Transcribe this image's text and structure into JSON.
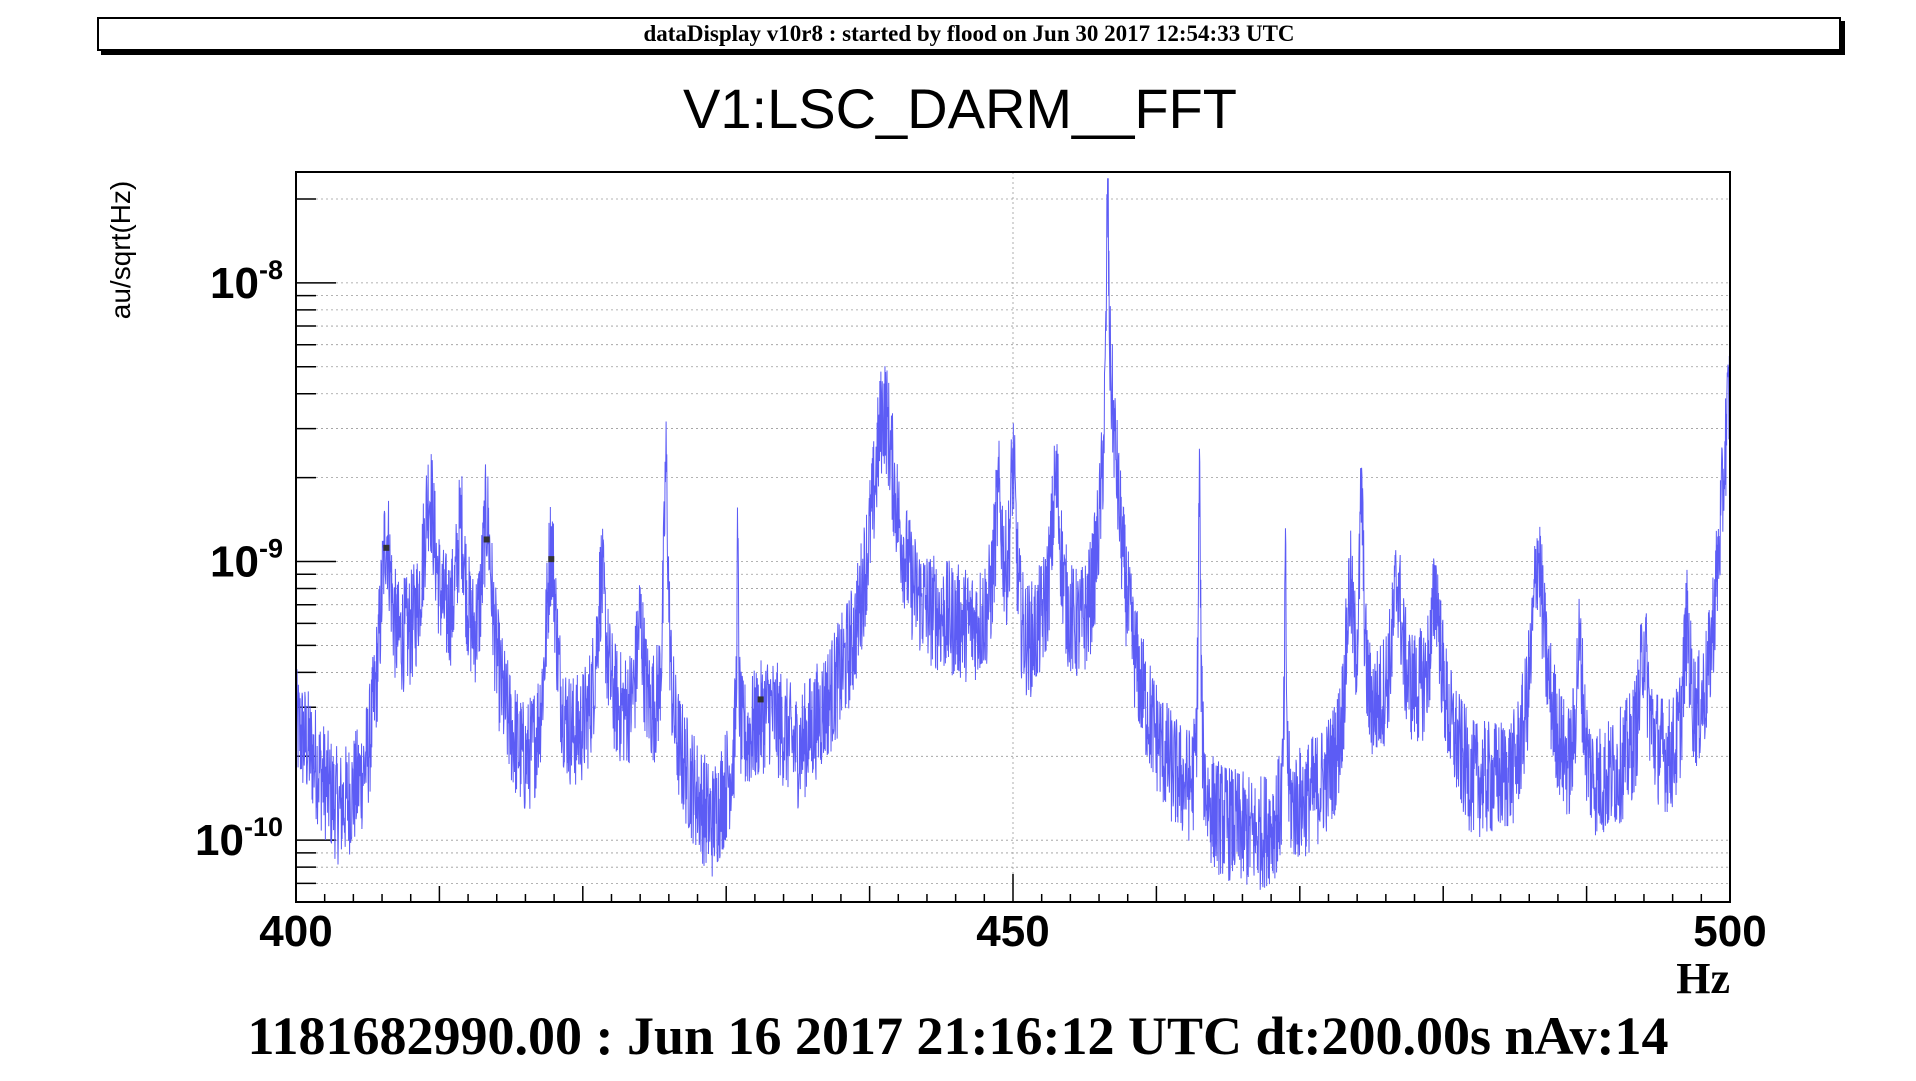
{
  "header": {
    "banner": "dataDisplay v10r8 : started by flood on Jun 30 2017 12:54:33 UTC"
  },
  "footer": {
    "timestamp": "1181682990.00 : Jun 16 2017 21:16:12 UTC dt:200.00s nAv:14"
  },
  "chart_data": {
    "type": "line",
    "title": "V1:LSC_DARM__FFT",
    "xlabel": "Hz",
    "ylabel": "au/sqrt(Hz)",
    "xlim": [
      400,
      500
    ],
    "ylim": [
      6e-11,
      2.5e-08
    ],
    "yscale": "log",
    "grid": true,
    "line_color": "#5c5cf5",
    "x_ticks": [
      {
        "value": 400,
        "label": "400"
      },
      {
        "value": 450,
        "label": "450"
      },
      {
        "value": 500,
        "label": "500"
      }
    ],
    "y_ticks": [
      {
        "value": 1e-10,
        "base": "10",
        "exp": "-10"
      },
      {
        "value": 1e-09,
        "base": "10",
        "exp": "-9"
      },
      {
        "value": 1e-08,
        "base": "10",
        "exp": "-8"
      }
    ],
    "background_floor": [
      [
        400,
        2.5e-10
      ],
      [
        401,
        2e-10
      ],
      [
        403,
        1.1e-10
      ],
      [
        405,
        1.2e-10
      ],
      [
        407.5,
        4e-10
      ],
      [
        410.5,
        4.5e-10
      ],
      [
        413.5,
        3e-10
      ],
      [
        416,
        1.4e-10
      ],
      [
        418,
        1.6e-10
      ],
      [
        420,
        2e-10
      ],
      [
        422,
        2.5e-10
      ],
      [
        425,
        2.3e-10
      ],
      [
        427,
        1.6e-10
      ],
      [
        429,
        1e-10
      ],
      [
        431,
        2e-10
      ],
      [
        433,
        2.8e-10
      ],
      [
        435,
        1.8e-10
      ],
      [
        437,
        2.5e-10
      ],
      [
        439,
        3.5e-10
      ],
      [
        441,
        1e-09
      ],
      [
        443,
        6e-10
      ],
      [
        446,
        5.5e-10
      ],
      [
        448,
        5e-10
      ],
      [
        450,
        3e-10
      ],
      [
        452,
        4.5e-10
      ],
      [
        454,
        4e-10
      ],
      [
        456,
        3e-10
      ],
      [
        459,
        1.8e-10
      ],
      [
        461,
        1.3e-10
      ],
      [
        464,
        1e-10
      ],
      [
        467,
        9e-11
      ],
      [
        470,
        1.2e-10
      ],
      [
        473,
        1.6e-10
      ],
      [
        476,
        2.8e-10
      ],
      [
        479,
        3e-10
      ],
      [
        482,
        1.5e-10
      ],
      [
        485,
        1.5e-10
      ],
      [
        487,
        3e-10
      ],
      [
        489,
        1.2e-10
      ],
      [
        491,
        1.4e-10
      ],
      [
        494,
        2e-10
      ],
      [
        497,
        1.3e-10
      ],
      [
        498.5,
        2.2e-10
      ],
      [
        500,
        1.5e-09
      ]
    ],
    "peaks": [
      {
        "f": 406.3,
        "amp": 1e-09,
        "width": 0.35
      },
      {
        "f": 409.3,
        "amp": 1.3e-09,
        "width": 0.4
      },
      {
        "f": 411.5,
        "amp": 9e-10,
        "width": 0.3
      },
      {
        "f": 413.3,
        "amp": 1.1e-09,
        "width": 0.3
      },
      {
        "f": 417.8,
        "amp": 9.5e-10,
        "width": 0.3
      },
      {
        "f": 421.3,
        "amp": 6e-10,
        "width": 0.3
      },
      {
        "f": 424.0,
        "amp": 3.5e-10,
        "width": 0.25
      },
      {
        "f": 425.8,
        "amp": 2e-09,
        "width": 0.12
      },
      {
        "f": 430.8,
        "amp": 9e-10,
        "width": 0.05
      },
      {
        "f": 441.0,
        "amp": 2.5e-09,
        "width": 0.6
      },
      {
        "f": 449.0,
        "amp": 1.2e-09,
        "width": 0.3
      },
      {
        "f": 450.0,
        "amp": 1.8e-09,
        "width": 0.2
      },
      {
        "f": 453.0,
        "amp": 1.4e-09,
        "width": 0.3
      },
      {
        "f": 456.6,
        "amp": 2e-08,
        "width": 0.06
      },
      {
        "f": 456.8,
        "amp": 3e-09,
        "width": 0.5
      },
      {
        "f": 463.0,
        "amp": 2e-09,
        "width": 0.05
      },
      {
        "f": 469.0,
        "amp": 8e-10,
        "width": 0.05
      },
      {
        "f": 473.5,
        "amp": 6e-10,
        "width": 0.25
      },
      {
        "f": 474.3,
        "amp": 1.5e-09,
        "width": 0.12
      },
      {
        "f": 476.8,
        "amp": 5.5e-10,
        "width": 0.3
      },
      {
        "f": 479.5,
        "amp": 5e-10,
        "width": 0.3
      },
      {
        "f": 486.6,
        "amp": 8e-10,
        "width": 0.3
      },
      {
        "f": 489.5,
        "amp": 3.5e-10,
        "width": 0.25
      },
      {
        "f": 494.0,
        "amp": 3e-10,
        "width": 0.25
      },
      {
        "f": 497.0,
        "amp": 4e-10,
        "width": 0.25
      },
      {
        "f": 500.0,
        "amp": 2.6e-09,
        "width": 0.4
      }
    ],
    "peak_markers": [
      {
        "f": 406.3,
        "amp": 1.12e-09
      },
      {
        "f": 413.3,
        "amp": 1.2e-09
      },
      {
        "f": 417.8,
        "amp": 1.02e-09
      },
      {
        "f": 432.4,
        "amp": 3.2e-10
      }
    ]
  }
}
